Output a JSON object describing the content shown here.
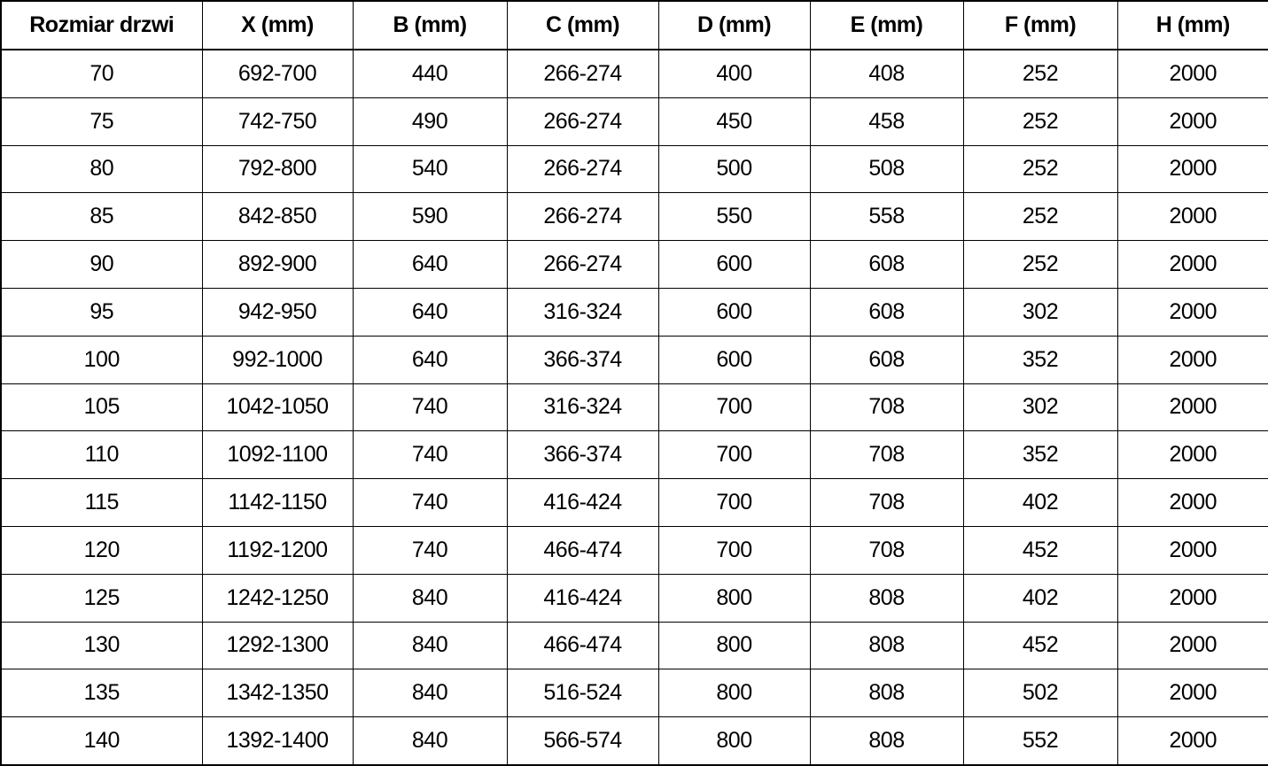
{
  "colors": {
    "background": "#ffffff",
    "border": "#000000",
    "text": "#000000"
  },
  "chart_data": {
    "type": "table",
    "columns": [
      "Rozmiar drzwi",
      "X (mm)",
      "B (mm)",
      "C (mm)",
      "D (mm)",
      "E (mm)",
      "F (mm)",
      "H (mm)"
    ],
    "rows": [
      [
        "70",
        "692-700",
        "440",
        "266-274",
        "400",
        "408",
        "252",
        "2000"
      ],
      [
        "75",
        "742-750",
        "490",
        "266-274",
        "450",
        "458",
        "252",
        "2000"
      ],
      [
        "80",
        "792-800",
        "540",
        "266-274",
        "500",
        "508",
        "252",
        "2000"
      ],
      [
        "85",
        "842-850",
        "590",
        "266-274",
        "550",
        "558",
        "252",
        "2000"
      ],
      [
        "90",
        "892-900",
        "640",
        "266-274",
        "600",
        "608",
        "252",
        "2000"
      ],
      [
        "95",
        "942-950",
        "640",
        "316-324",
        "600",
        "608",
        "302",
        "2000"
      ],
      [
        "100",
        "992-1000",
        "640",
        "366-374",
        "600",
        "608",
        "352",
        "2000"
      ],
      [
        "105",
        "1042-1050",
        "740",
        "316-324",
        "700",
        "708",
        "302",
        "2000"
      ],
      [
        "110",
        "1092-1100",
        "740",
        "366-374",
        "700",
        "708",
        "352",
        "2000"
      ],
      [
        "115",
        "1142-1150",
        "740",
        "416-424",
        "700",
        "708",
        "402",
        "2000"
      ],
      [
        "120",
        "1192-1200",
        "740",
        "466-474",
        "700",
        "708",
        "452",
        "2000"
      ],
      [
        "125",
        "1242-1250",
        "840",
        "416-424",
        "800",
        "808",
        "402",
        "2000"
      ],
      [
        "130",
        "1292-1300",
        "840",
        "466-474",
        "800",
        "808",
        "452",
        "2000"
      ],
      [
        "135",
        "1342-1350",
        "840",
        "516-524",
        "800",
        "808",
        "502",
        "2000"
      ],
      [
        "140",
        "1392-1400",
        "840",
        "566-574",
        "800",
        "808",
        "552",
        "2000"
      ]
    ]
  }
}
